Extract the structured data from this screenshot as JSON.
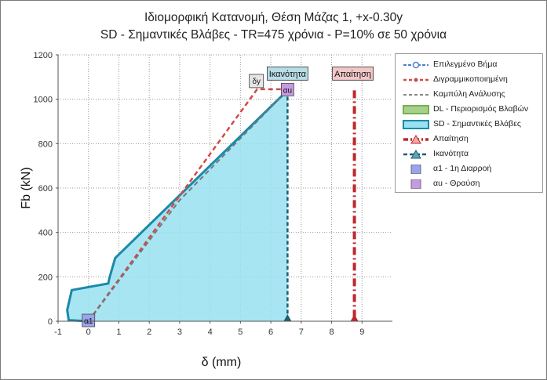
{
  "chart_data": {
    "type": "area",
    "title": "Ιδιομορφική Κατανομή, Θέση Μάζας 1, +x-0.30y",
    "subtitle": "SD - Σημαντικές Βλάβες - TR=475 χρόνια - P=10% σε 50 χρόνια",
    "xlabel": "δ (mm)",
    "ylabel": "Fb (kN)",
    "xlim": [
      -1,
      10
    ],
    "ylim": [
      0,
      1200
    ],
    "xticks": [
      -1,
      0,
      1,
      2,
      3,
      4,
      5,
      6,
      7,
      8,
      9
    ],
    "yticks": [
      0,
      200,
      400,
      600,
      800,
      1000,
      1200
    ],
    "grid": true,
    "legend_position": "right",
    "series": [
      {
        "name": "Επιλεγμένο Βήμα",
        "type": "line",
        "color": "#4f7fd6",
        "style": "dashed-marker",
        "x": [],
        "y": []
      },
      {
        "name": "Διγραμμικοποιημένη",
        "type": "line",
        "color": "#d24a4a",
        "style": "dashed",
        "x": [
          0.0,
          5.55,
          6.55
        ],
        "y": [
          0,
          1045,
          1045
        ]
      },
      {
        "name": "Καμπύλη Ανάλυσης",
        "type": "line",
        "color": "#777777",
        "style": "dashed",
        "x": [
          0.0,
          3.0,
          6.55
        ],
        "y": [
          0,
          545,
          1040
        ]
      },
      {
        "name": "DL - Περιορισμός Βλαβών",
        "type": "area",
        "color": "#a8d08d",
        "x": [],
        "y": []
      },
      {
        "name": "SD - Σημαντικές Βλάβες",
        "type": "area",
        "color": "#99e0f0",
        "edge": "#1a8aa8",
        "x": [
          0.0,
          -0.65,
          -0.7,
          -0.55,
          0.65,
          0.7,
          0.88,
          6.55,
          6.55
        ],
        "y": [
          0,
          5,
          50,
          140,
          170,
          200,
          285,
          1040,
          0
        ]
      },
      {
        "name": "Απαίτηση",
        "type": "vline",
        "color": "#c0282d",
        "x": 8.75,
        "label": "Απαίτηση"
      },
      {
        "name": "Ικανότητα",
        "type": "vline",
        "color": "#1e5f73",
        "x": 6.55,
        "label": "Ικανότητα"
      }
    ],
    "points": [
      {
        "name": "α1 - 1η Διαρροή",
        "x": 0.0,
        "y": 0,
        "label": "α1",
        "color": "#9aa3ee"
      },
      {
        "name": "αu - Θραύση",
        "x": 6.55,
        "y": 1040,
        "label": "αu",
        "color": "#c49be0"
      },
      {
        "name": "δy",
        "x": 5.5,
        "y": 1045,
        "label": "δy"
      }
    ]
  },
  "legend": {
    "items": [
      {
        "label": "Επιλεγμένο Βήμα",
        "kind": "line-marker",
        "color": "#4f7fd6"
      },
      {
        "label": "Διγραμμικοποιημένη",
        "kind": "dashed-dot",
        "color": "#d24a4a"
      },
      {
        "label": "Καμπύλη Ανάλυσης",
        "kind": "dashed",
        "color": "#888888"
      },
      {
        "label": "DL - Περιορισμός Βλαβών",
        "kind": "box",
        "color": "#a8d08d",
        "edge": "#78b04e"
      },
      {
        "label": "SD - Σημαντικές Βλάβες",
        "kind": "box",
        "color": "#99e0f0",
        "edge": "#1a8aa8"
      },
      {
        "label": "Απαίτηση",
        "kind": "triangle",
        "color": "#c0282d"
      },
      {
        "label": "Ικανότητα",
        "kind": "triangle-dash",
        "color": "#1e5f73"
      },
      {
        "label": "α1 - 1η Διαρροή",
        "kind": "square",
        "color": "#9aa3ee"
      },
      {
        "label": "αu - Θραύση",
        "kind": "square",
        "color": "#c49be0"
      }
    ]
  }
}
